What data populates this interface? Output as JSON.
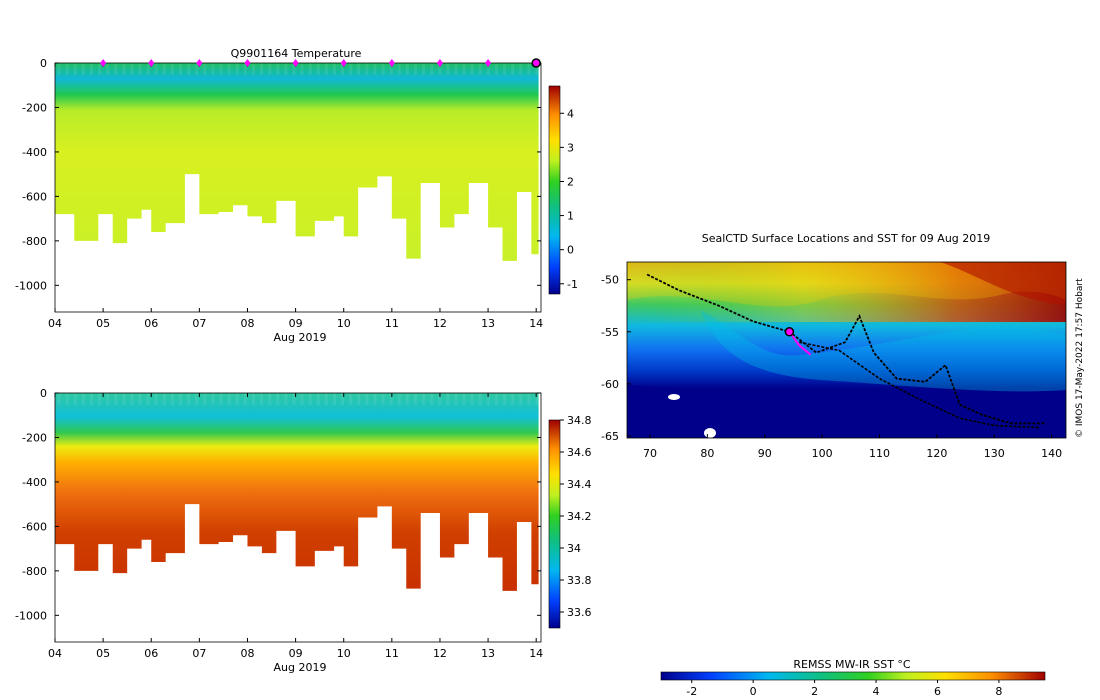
{
  "chart_data": [
    {
      "type": "heatmap",
      "title": "Q9901164  Temperature",
      "xlabel": "Aug 2019",
      "x_ticks": [
        "04",
        "05",
        "06",
        "07",
        "08",
        "09",
        "10",
        "11",
        "12",
        "13",
        "14"
      ],
      "y_ticks": [
        "0",
        "-200",
        "-400",
        "-600",
        "-800",
        "-1000"
      ],
      "ylim": [
        -1120,
        0
      ],
      "xlim": [
        4,
        14.1
      ],
      "colorbar": {
        "range": [
          -1.3,
          4.8
        ],
        "ticks": [
          "-1",
          "0",
          "1",
          "2",
          "3",
          "4"
        ]
      },
      "surface_markers_x": [
        5,
        6,
        7,
        8,
        9,
        10,
        11,
        12,
        13,
        14
      ],
      "max_depth_profile": [
        {
          "x": 4.0,
          "depth": 680
        },
        {
          "x": 4.4,
          "depth": 800
        },
        {
          "x": 4.9,
          "depth": 680
        },
        {
          "x": 5.2,
          "depth": 810
        },
        {
          "x": 5.5,
          "depth": 700
        },
        {
          "x": 5.8,
          "depth": 660
        },
        {
          "x": 6.0,
          "depth": 760
        },
        {
          "x": 6.3,
          "depth": 720
        },
        {
          "x": 6.7,
          "depth": 500
        },
        {
          "x": 7.0,
          "depth": 680
        },
        {
          "x": 7.4,
          "depth": 670
        },
        {
          "x": 7.7,
          "depth": 640
        },
        {
          "x": 8.0,
          "depth": 690
        },
        {
          "x": 8.3,
          "depth": 720
        },
        {
          "x": 8.6,
          "depth": 620
        },
        {
          "x": 9.0,
          "depth": 780
        },
        {
          "x": 9.4,
          "depth": 710
        },
        {
          "x": 9.8,
          "depth": 690
        },
        {
          "x": 10.0,
          "depth": 780
        },
        {
          "x": 10.3,
          "depth": 560
        },
        {
          "x": 10.7,
          "depth": 510
        },
        {
          "x": 11.0,
          "depth": 700
        },
        {
          "x": 11.3,
          "depth": 880
        },
        {
          "x": 11.6,
          "depth": 540
        },
        {
          "x": 12.0,
          "depth": 740
        },
        {
          "x": 12.3,
          "depth": 680
        },
        {
          "x": 12.6,
          "depth": 540
        },
        {
          "x": 13.0,
          "depth": 740
        },
        {
          "x": 13.3,
          "depth": 890
        },
        {
          "x": 13.6,
          "depth": 580
        },
        {
          "x": 13.9,
          "depth": 860
        }
      ]
    },
    {
      "type": "heatmap",
      "title": "",
      "xlabel": "Aug 2019",
      "x_ticks": [
        "04",
        "05",
        "06",
        "07",
        "08",
        "09",
        "10",
        "11",
        "12",
        "13",
        "14"
      ],
      "y_ticks": [
        "0",
        "-200",
        "-400",
        "-600",
        "-800",
        "-1000"
      ],
      "ylim": [
        -1120,
        0
      ],
      "xlim": [
        4,
        14.1
      ],
      "colorbar": {
        "range": [
          33.5,
          34.8
        ],
        "ticks": [
          "33.6",
          "33.8",
          "34",
          "34.2",
          "34.4",
          "34.6",
          "34.8"
        ]
      }
    },
    {
      "type": "heatmap",
      "title": "SealCTD Surface Locations and SST for 09 Aug 2019",
      "x_ticks": [
        "70",
        "80",
        "90",
        "100",
        "110",
        "120",
        "130",
        "140"
      ],
      "y_ticks": [
        "-50",
        "-55",
        "-60",
        "-65"
      ],
      "xlim": [
        66,
        142.5
      ],
      "ylim": [
        -65.2,
        -48.3
      ],
      "side_label": "© IMOS 17-May-2022 17:57 Hobart",
      "colorbar": {
        "label": "REMSS MW-IR SST °C",
        "range": [
          -3,
          9.5
        ],
        "ticks": [
          "-2",
          "0",
          "2",
          "4",
          "6",
          "8"
        ]
      },
      "track": [
        {
          "lon": 69.5,
          "lat": -49.5
        },
        {
          "lon": 75,
          "lat": -51
        },
        {
          "lon": 82,
          "lat": -52.5
        },
        {
          "lon": 88,
          "lat": -54
        },
        {
          "lon": 94.3,
          "lat": -55
        },
        {
          "lon": 99,
          "lat": -57
        },
        {
          "lon": 104,
          "lat": -56
        },
        {
          "lon": 106.5,
          "lat": -53.5
        },
        {
          "lon": 109,
          "lat": -57
        },
        {
          "lon": 113,
          "lat": -59.5
        },
        {
          "lon": 118,
          "lat": -59.8
        },
        {
          "lon": 121.5,
          "lat": -58.2
        },
        {
          "lon": 124,
          "lat": -62
        },
        {
          "lon": 128,
          "lat": -63
        },
        {
          "lon": 133,
          "lat": -63.8
        },
        {
          "lon": 139,
          "lat": -63.8
        }
      ],
      "track_south": [
        {
          "lon": 96,
          "lat": -56
        },
        {
          "lon": 103,
          "lat": -56.8
        },
        {
          "lon": 110,
          "lat": -59.5
        },
        {
          "lon": 117,
          "lat": -61.5
        },
        {
          "lon": 124,
          "lat": -63.3
        },
        {
          "lon": 130,
          "lat": -64
        },
        {
          "lon": 138,
          "lat": -64.2
        }
      ],
      "highlight_segment": [
        {
          "lon": 94.3,
          "lat": -55
        },
        {
          "lon": 96,
          "lat": -56.3
        },
        {
          "lon": 98,
          "lat": -57.2
        }
      ],
      "current_position": {
        "lon": 94.3,
        "lat": -55
      }
    }
  ]
}
